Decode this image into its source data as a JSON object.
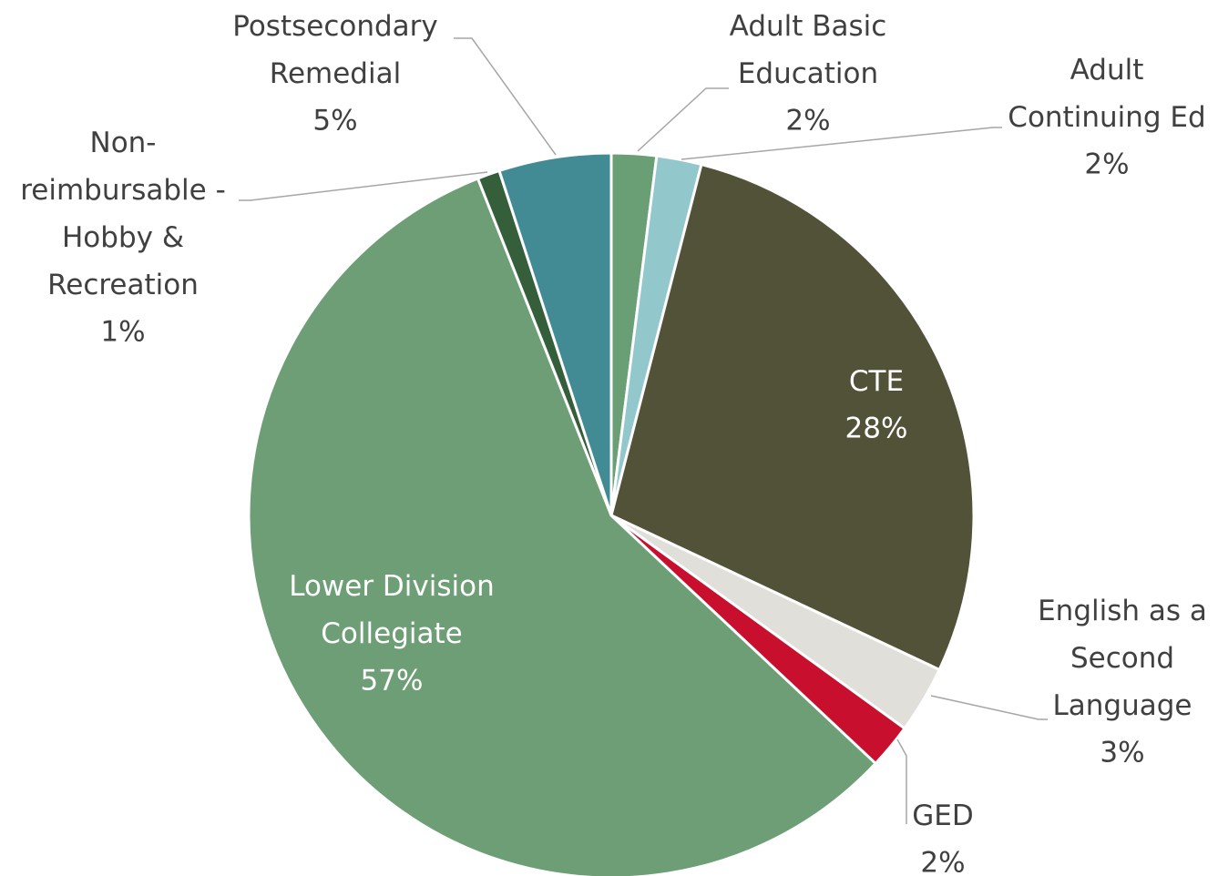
{
  "chart_data": {
    "type": "pie",
    "categories": [
      "Adult Basic Education",
      "Adult Continuing Ed",
      "CTE",
      "English as a Second Language",
      "GED",
      "Lower Division Collegiate",
      "Non-reimbursable - Hobby & Recreation",
      "Postsecondary Remedial"
    ],
    "values": [
      2,
      2,
      28,
      3,
      2,
      57,
      1,
      5
    ],
    "value_labels": [
      "2%",
      "2%",
      "28%",
      "3%",
      "2%",
      "57%",
      "1%",
      "5%"
    ],
    "colors": [
      "#6a9e75",
      "#92c8cc",
      "#525239",
      "#e0dfd9",
      "#c8102e",
      "#6d9e76",
      "#355e3b",
      "#428b94"
    ]
  }
}
